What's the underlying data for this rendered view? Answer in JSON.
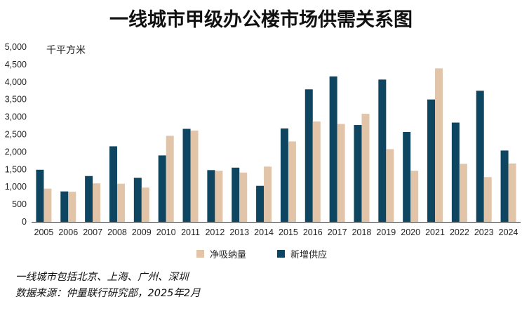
{
  "chart_data": {
    "type": "bar",
    "title": "一线城市甲级办公楼市场供需关系图",
    "ylabel": "千平方米",
    "xlabel": "",
    "ylim": [
      0,
      5000
    ],
    "yticks": [
      "0",
      "500",
      "1,000",
      "1,500",
      "2,000",
      "2,500",
      "3,000",
      "3,500",
      "4,000",
      "4,500",
      "5,000"
    ],
    "grid": false,
    "legend_position": "bottom",
    "categories": [
      "2005",
      "2006",
      "2007",
      "2008",
      "2009",
      "2010",
      "2011",
      "2012",
      "2013",
      "2014",
      "2015",
      "2016",
      "2017",
      "2018",
      "2019",
      "2020",
      "2021",
      "2022",
      "2023",
      "2024"
    ],
    "series": [
      {
        "name": "新增供应",
        "color": "#0e4560",
        "values": [
          1490,
          870,
          1310,
          2160,
          1260,
          1900,
          2660,
          1480,
          1550,
          1030,
          2670,
          3790,
          4160,
          2770,
          4070,
          2570,
          3500,
          2840,
          3750,
          2040
        ]
      },
      {
        "name": "净吸纳量",
        "color": "#e2c4a8",
        "values": [
          950,
          860,
          1100,
          1090,
          980,
          2460,
          2610,
          1460,
          1410,
          1580,
          2300,
          2870,
          2800,
          3090,
          2080,
          1460,
          4390,
          1660,
          1280,
          1670
        ]
      }
    ]
  },
  "legend": {
    "absorption": "净吸纳量",
    "supply": "新增供应"
  },
  "notes": {
    "line1": "一线城市包括北京、上海、广州、深圳",
    "line2": "数据来源：仲量联行研究部，2025年2月"
  }
}
